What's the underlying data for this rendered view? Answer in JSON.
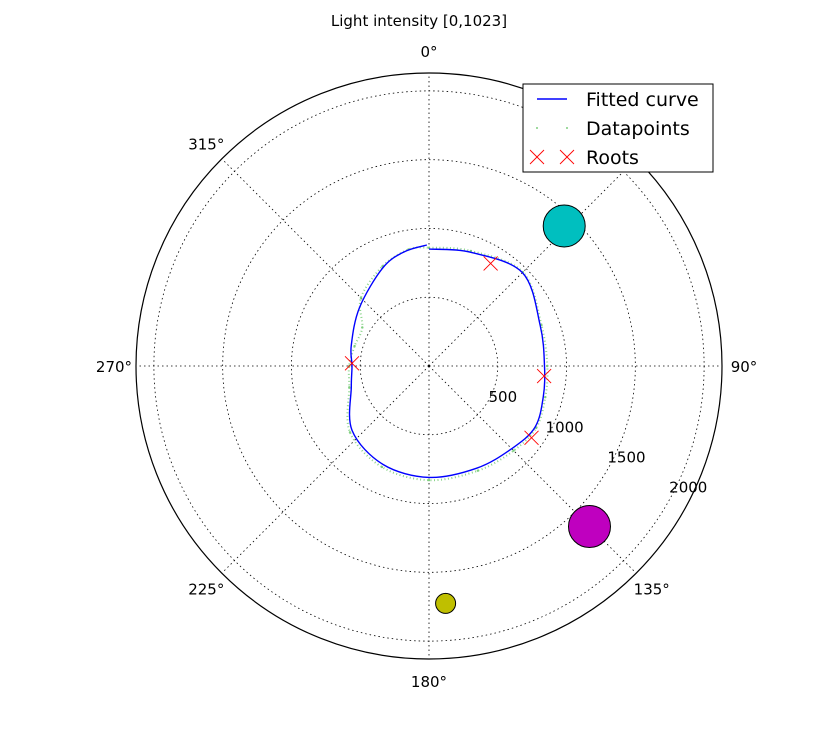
{
  "chart_data": {
    "type": "polar",
    "title": "Light intensity [0,1023]",
    "theta_zero": "top",
    "theta_direction": "clockwise",
    "angle_ticks": [
      "0°",
      "90°",
      "135°",
      "180°",
      "225°",
      "270°",
      "315°"
    ],
    "angle_tick_values": [
      0,
      90,
      135,
      180,
      225,
      270,
      315
    ],
    "radial_ticks": [
      "500",
      "1000",
      "1500",
      "2000"
    ],
    "radial_tick_values": [
      500,
      1000,
      1500,
      2000
    ],
    "rlim": [
      0,
      2130
    ],
    "grid": true,
    "legend_location": "upper right",
    "legend": [
      {
        "label": "Fitted curve",
        "color": "#0000ff",
        "marker": "line"
      },
      {
        "label": "Datapoints",
        "color": "#7fcf7f",
        "marker": "dot"
      },
      {
        "label": "Roots",
        "color": "#ff0000",
        "marker": "x"
      }
    ],
    "series": [
      {
        "name": "Fitted curve",
        "color": "#0000ff",
        "points": [
          {
            "theta": 0,
            "r": 850
          },
          {
            "theta": 20,
            "r": 880
          },
          {
            "theta": 45,
            "r": 960
          },
          {
            "theta": 70,
            "r": 860
          },
          {
            "theta": 90,
            "r": 840
          },
          {
            "theta": 105,
            "r": 860
          },
          {
            "theta": 120,
            "r": 890
          },
          {
            "theta": 135,
            "r": 850
          },
          {
            "theta": 155,
            "r": 820
          },
          {
            "theta": 180,
            "r": 810
          },
          {
            "theta": 205,
            "r": 790
          },
          {
            "theta": 230,
            "r": 730
          },
          {
            "theta": 255,
            "r": 585
          },
          {
            "theta": 270,
            "r": 560
          },
          {
            "theta": 285,
            "r": 585
          },
          {
            "theta": 310,
            "r": 660
          },
          {
            "theta": 335,
            "r": 790
          },
          {
            "theta": 348,
            "r": 850
          },
          {
            "theta": 359,
            "r": 880
          }
        ]
      },
      {
        "name": "Datapoints",
        "color": "#7fcf7f",
        "points": [
          {
            "theta": 0,
            "r": 860
          },
          {
            "theta": 20,
            "r": 890
          },
          {
            "theta": 45,
            "r": 965
          },
          {
            "theta": 70,
            "r": 870
          },
          {
            "theta": 90,
            "r": 860
          },
          {
            "theta": 105,
            "r": 875
          },
          {
            "theta": 120,
            "r": 900
          },
          {
            "theta": 135,
            "r": 870
          },
          {
            "theta": 155,
            "r": 840
          },
          {
            "theta": 180,
            "r": 830
          },
          {
            "theta": 205,
            "r": 810
          },
          {
            "theta": 230,
            "r": 750
          },
          {
            "theta": 255,
            "r": 600
          },
          {
            "theta": 270,
            "r": 580
          },
          {
            "theta": 285,
            "r": 560
          },
          {
            "theta": 300,
            "r": 560
          },
          {
            "theta": 315,
            "r": 700
          },
          {
            "theta": 335,
            "r": 800
          },
          {
            "theta": 350,
            "r": 860
          }
        ]
      }
    ],
    "roots": [
      {
        "theta": 31,
        "r": 870
      },
      {
        "theta": 95,
        "r": 840
      },
      {
        "theta": 125,
        "r": 910
      },
      {
        "theta": 272,
        "r": 560
      }
    ],
    "circles": [
      {
        "theta": 44,
        "r": 1415,
        "size": 21,
        "color": "#00bfbf"
      },
      {
        "theta": 135,
        "r": 1650,
        "size": 21,
        "color": "#bf00bf"
      },
      {
        "theta": 176,
        "r": 1730,
        "size": 10,
        "color": "#bfbf00"
      }
    ]
  }
}
